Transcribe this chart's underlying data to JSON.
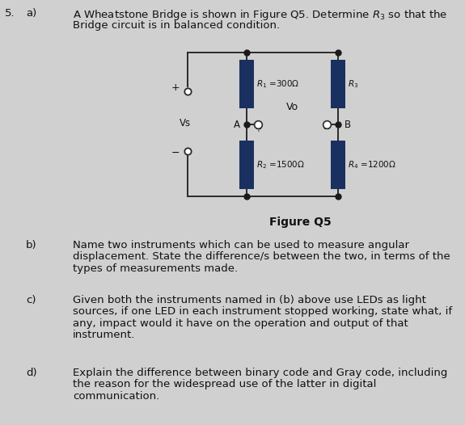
{
  "background_color": "#d0d0d0",
  "wire_color": "#2a2a2a",
  "resistor_color": "#1a3060",
  "node_color": "#1a1a1a",
  "text_color": "#111111",
  "fig_caption": "Figure Q5",
  "vs_label": "Vs",
  "vo_label": "Vo",
  "node_a": "A",
  "node_b": "B",
  "r1_label": "$R_1$ =300Ω",
  "r3_label": "$R_3$",
  "r2_label": "$R_2$ =1500Ω",
  "r4_label": "$R_4$ =1200Ω",
  "line_a1": "A Wheatstone Bridge is shown in Figure Q5. Determine $R_3$ so that the",
  "line_a2": "Bridge circuit is in balanced condition.",
  "part_b_lines": [
    "Name two instruments which can be used to measure angular",
    "displacement. State the difference/s between the two, in terms of the",
    "types of measurements made."
  ],
  "part_c_lines": [
    "Given both the instruments named in (b) above use LEDs as light",
    "sources, if one LED in each instrument stopped working, state what, if",
    "any, impact would it have on the operation and output of that",
    "instrument."
  ],
  "part_d_lines": [
    "Explain the difference between binary code and Gray code, including",
    "the reason for the widespread use of the latter in digital",
    "communication."
  ]
}
